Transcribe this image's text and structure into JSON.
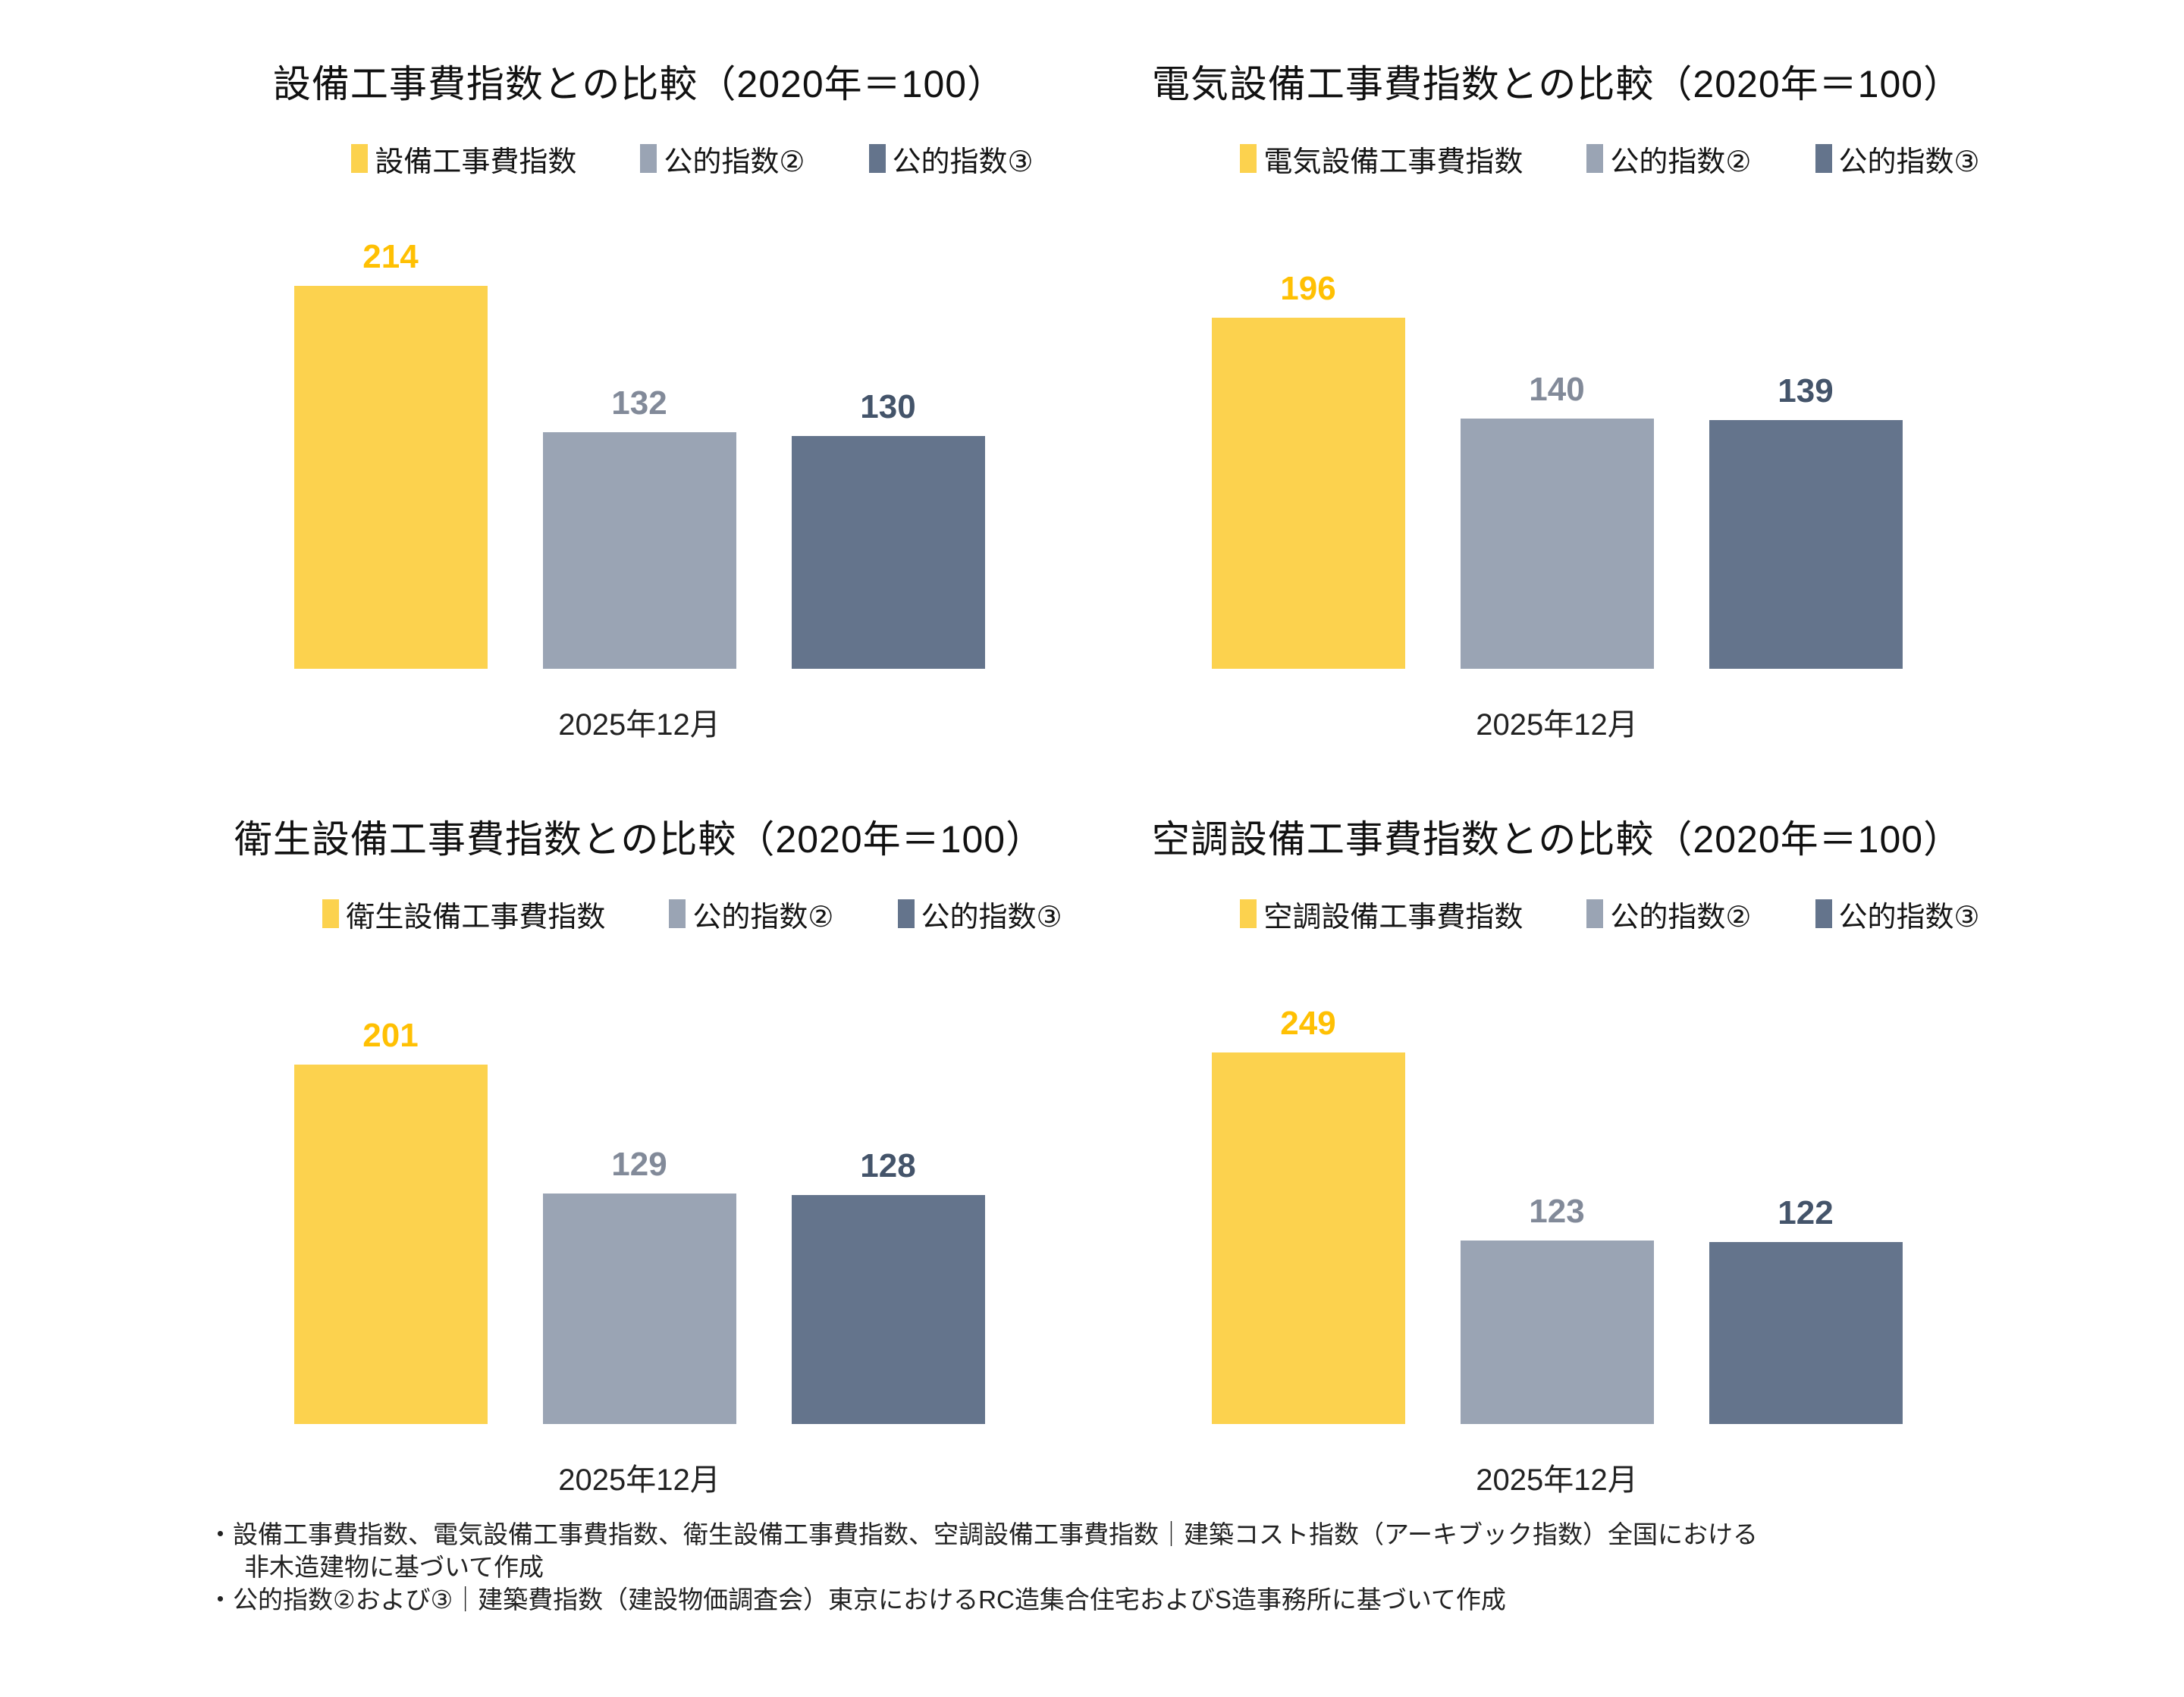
{
  "page": {
    "background": "#ffffff",
    "footnotes": [
      "・設備工事費指数、電気設備工事費指数、衛生設備工事費指数、空調設備工事費指数｜建築コスト指数（アーキブック指数）全国における",
      "非木造建物に基づいて作成",
      "・公的指数②および③｜建築費指数（建設物価調査会）東京におけるRC造集合住宅およびS造事務所に基づいて作成"
    ]
  },
  "colors": {
    "series_primary_bar": "#FCD24E",
    "series_primary_label": "#FFC003",
    "series_public2_bar": "#9AA4B4",
    "series_public2_label": "#828A99",
    "series_public3_bar": "#64748C",
    "series_public3_label": "#44546A"
  },
  "chart_data": [
    {
      "type": "bar",
      "title": "設備工事費指数との比較（2020年＝100）",
      "categories": [
        "2025年12月"
      ],
      "series": [
        {
          "name": "設備工事費指数",
          "values": [
            214
          ],
          "color": "#FCD24E",
          "label_color": "#FFC003"
        },
        {
          "name": "公的指数②",
          "values": [
            132
          ],
          "color": "#9AA4B4",
          "label_color": "#828A99"
        },
        {
          "name": "公的指数③",
          "values": [
            130
          ],
          "color": "#64748C",
          "label_color": "#44546A"
        }
      ],
      "ylim": [
        0,
        250
      ],
      "grid": false,
      "legend_position": "top",
      "data_labels": true
    },
    {
      "type": "bar",
      "title": "電気設備工事費指数との比較（2020年＝100）",
      "categories": [
        "2025年12月"
      ],
      "series": [
        {
          "name": "電気設備工事費指数",
          "values": [
            196
          ],
          "color": "#FCD24E",
          "label_color": "#FFC003"
        },
        {
          "name": "公的指数②",
          "values": [
            140
          ],
          "color": "#9AA4B4",
          "label_color": "#828A99"
        },
        {
          "name": "公的指数③",
          "values": [
            139
          ],
          "color": "#64748C",
          "label_color": "#44546A"
        }
      ],
      "ylim": [
        0,
        250
      ],
      "grid": false,
      "legend_position": "top",
      "data_labels": true
    },
    {
      "type": "bar",
      "title": "衛生設備工事費指数との比較（2020年＝100）",
      "categories": [
        "2025年12月"
      ],
      "series": [
        {
          "name": "衛生設備工事費指数",
          "values": [
            201
          ],
          "color": "#FCD24E",
          "label_color": "#FFC003"
        },
        {
          "name": "公的指数②",
          "values": [
            129
          ],
          "color": "#9AA4B4",
          "label_color": "#828A99"
        },
        {
          "name": "公的指数③",
          "values": [
            128
          ],
          "color": "#64748C",
          "label_color": "#44546A"
        }
      ],
      "ylim": [
        0,
        250
      ],
      "grid": false,
      "legend_position": "top",
      "data_labels": true
    },
    {
      "type": "bar",
      "title": "空調設備工事費指数との比較（2020年＝100）",
      "categories": [
        "2025年12月"
      ],
      "series": [
        {
          "name": "空調設備工事費指数",
          "values": [
            249
          ],
          "color": "#FCD24E",
          "label_color": "#FFC003"
        },
        {
          "name": "公的指数②",
          "values": [
            123
          ],
          "color": "#9AA4B4",
          "label_color": "#828A99"
        },
        {
          "name": "公的指数③",
          "values": [
            122
          ],
          "color": "#64748C",
          "label_color": "#44546A"
        }
      ],
      "ylim": [
        0,
        300
      ],
      "grid": false,
      "legend_position": "top",
      "data_labels": true
    }
  ]
}
